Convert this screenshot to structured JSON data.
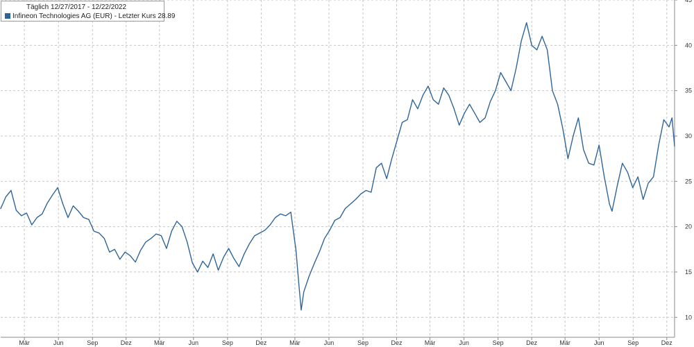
{
  "chart_data": {
    "type": "line",
    "title": "Täglich 12/27/2017 - 12/22/2022",
    "series": [
      {
        "name": "Infineon Technologies AG (EUR) - Letzter Kurs 28.89",
        "color": "#2e6599",
        "points": [
          [
            "2017-12-27",
            22.0
          ],
          [
            "2018-01-10",
            23.3
          ],
          [
            "2018-01-24",
            24.0
          ],
          [
            "2018-02-07",
            21.8
          ],
          [
            "2018-02-21",
            21.2
          ],
          [
            "2018-03-07",
            21.5
          ],
          [
            "2018-03-21",
            20.2
          ],
          [
            "2018-04-04",
            21.0
          ],
          [
            "2018-04-18",
            21.4
          ],
          [
            "2018-05-02",
            22.6
          ],
          [
            "2018-05-16",
            23.5
          ],
          [
            "2018-05-30",
            24.3
          ],
          [
            "2018-06-13",
            22.5
          ],
          [
            "2018-06-27",
            21.0
          ],
          [
            "2018-07-11",
            22.3
          ],
          [
            "2018-07-25",
            21.7
          ],
          [
            "2018-08-08",
            21.0
          ],
          [
            "2018-08-22",
            20.8
          ],
          [
            "2018-09-05",
            19.5
          ],
          [
            "2018-09-19",
            19.3
          ],
          [
            "2018-10-03",
            18.7
          ],
          [
            "2018-10-17",
            17.2
          ],
          [
            "2018-10-31",
            17.5
          ],
          [
            "2018-11-14",
            16.4
          ],
          [
            "2018-11-28",
            17.2
          ],
          [
            "2018-12-12",
            16.8
          ],
          [
            "2018-12-26",
            16.1
          ],
          [
            "2019-01-09",
            17.4
          ],
          [
            "2019-01-23",
            18.3
          ],
          [
            "2019-02-06",
            18.7
          ],
          [
            "2019-02-20",
            19.2
          ],
          [
            "2019-03-06",
            19.0
          ],
          [
            "2019-03-20",
            17.6
          ],
          [
            "2019-04-03",
            19.5
          ],
          [
            "2019-04-17",
            20.6
          ],
          [
            "2019-05-01",
            20.0
          ],
          [
            "2019-05-15",
            18.3
          ],
          [
            "2019-05-29",
            16.0
          ],
          [
            "2019-06-12",
            15.0
          ],
          [
            "2019-06-26",
            16.2
          ],
          [
            "2019-07-10",
            15.5
          ],
          [
            "2019-07-24",
            17.0
          ],
          [
            "2019-08-07",
            15.2
          ],
          [
            "2019-08-21",
            16.6
          ],
          [
            "2019-09-04",
            17.6
          ],
          [
            "2019-09-18",
            16.5
          ],
          [
            "2019-10-02",
            15.6
          ],
          [
            "2019-10-16",
            17.0
          ],
          [
            "2019-10-30",
            18.1
          ],
          [
            "2019-11-13",
            19.0
          ],
          [
            "2019-11-27",
            19.3
          ],
          [
            "2019-12-11",
            19.6
          ],
          [
            "2019-12-25",
            20.2
          ],
          [
            "2020-01-08",
            21.0
          ],
          [
            "2020-01-22",
            21.4
          ],
          [
            "2020-02-05",
            21.2
          ],
          [
            "2020-02-19",
            21.6
          ],
          [
            "2020-03-04",
            17.4
          ],
          [
            "2020-03-12",
            13.5
          ],
          [
            "2020-03-18",
            10.8
          ],
          [
            "2020-03-25",
            12.8
          ],
          [
            "2020-04-08",
            14.5
          ],
          [
            "2020-04-22",
            15.9
          ],
          [
            "2020-05-06",
            17.2
          ],
          [
            "2020-05-20",
            18.7
          ],
          [
            "2020-06-03",
            19.6
          ],
          [
            "2020-06-17",
            20.7
          ],
          [
            "2020-07-01",
            21.0
          ],
          [
            "2020-07-15",
            22.0
          ],
          [
            "2020-07-29",
            22.5
          ],
          [
            "2020-08-12",
            23.0
          ],
          [
            "2020-08-26",
            23.6
          ],
          [
            "2020-09-09",
            24.0
          ],
          [
            "2020-09-23",
            23.8
          ],
          [
            "2020-10-07",
            26.5
          ],
          [
            "2020-10-21",
            27.0
          ],
          [
            "2020-11-04",
            25.3
          ],
          [
            "2020-11-18",
            27.5
          ],
          [
            "2020-12-02",
            29.5
          ],
          [
            "2020-12-16",
            31.5
          ],
          [
            "2020-12-30",
            31.8
          ],
          [
            "2021-01-13",
            34.0
          ],
          [
            "2021-01-27",
            33.0
          ],
          [
            "2021-02-10",
            34.5
          ],
          [
            "2021-02-24",
            35.5
          ],
          [
            "2021-03-10",
            34.0
          ],
          [
            "2021-03-24",
            33.5
          ],
          [
            "2021-04-07",
            35.3
          ],
          [
            "2021-04-21",
            34.5
          ],
          [
            "2021-05-05",
            33.0
          ],
          [
            "2021-05-19",
            31.2
          ],
          [
            "2021-06-02",
            32.5
          ],
          [
            "2021-06-16",
            33.5
          ],
          [
            "2021-06-30",
            32.5
          ],
          [
            "2021-07-14",
            31.5
          ],
          [
            "2021-07-28",
            32.0
          ],
          [
            "2021-08-11",
            33.8
          ],
          [
            "2021-08-25",
            35.0
          ],
          [
            "2021-09-08",
            37.0
          ],
          [
            "2021-09-22",
            36.0
          ],
          [
            "2021-10-06",
            35.0
          ],
          [
            "2021-10-20",
            37.5
          ],
          [
            "2021-11-03",
            40.5
          ],
          [
            "2021-11-17",
            42.5
          ],
          [
            "2021-12-01",
            40.0
          ],
          [
            "2021-12-15",
            39.5
          ],
          [
            "2021-12-29",
            41.0
          ],
          [
            "2022-01-12",
            39.5
          ],
          [
            "2022-01-26",
            35.0
          ],
          [
            "2022-02-09",
            33.5
          ],
          [
            "2022-02-23",
            30.8
          ],
          [
            "2022-03-09",
            27.5
          ],
          [
            "2022-03-23",
            30.0
          ],
          [
            "2022-04-06",
            32.0
          ],
          [
            "2022-04-20",
            28.5
          ],
          [
            "2022-05-04",
            27.0
          ],
          [
            "2022-05-18",
            26.8
          ],
          [
            "2022-06-01",
            29.0
          ],
          [
            "2022-06-15",
            25.5
          ],
          [
            "2022-06-29",
            22.5
          ],
          [
            "2022-07-06",
            21.7
          ],
          [
            "2022-07-20",
            24.5
          ],
          [
            "2022-08-03",
            27.0
          ],
          [
            "2022-08-17",
            26.0
          ],
          [
            "2022-08-31",
            24.3
          ],
          [
            "2022-09-14",
            25.5
          ],
          [
            "2022-09-28",
            23.0
          ],
          [
            "2022-10-12",
            24.8
          ],
          [
            "2022-10-26",
            25.5
          ],
          [
            "2022-11-09",
            29.0
          ],
          [
            "2022-11-23",
            31.8
          ],
          [
            "2022-12-07",
            31.0
          ],
          [
            "2022-12-15",
            32.0
          ],
          [
            "2022-12-22",
            28.89
          ]
        ]
      }
    ],
    "x_tick_labels": [
      [
        "2018-03-01",
        "Mär"
      ],
      [
        "2018-06-01",
        "Jun"
      ],
      [
        "2018-09-01",
        "Sep"
      ],
      [
        "2018-12-01",
        "Dez"
      ],
      [
        "2019-03-01",
        "Mär"
      ],
      [
        "2019-06-01",
        "Jun"
      ],
      [
        "2019-09-01",
        "Sep"
      ],
      [
        "2019-12-01",
        "Dez"
      ],
      [
        "2020-03-01",
        "Mär"
      ],
      [
        "2020-06-01",
        "Jun"
      ],
      [
        "2020-09-01",
        "Sep"
      ],
      [
        "2020-12-01",
        "Dez"
      ],
      [
        "2021-03-01",
        "Mär"
      ],
      [
        "2021-06-01",
        "Jun"
      ],
      [
        "2021-09-01",
        "Sep"
      ],
      [
        "2021-12-01",
        "Dez"
      ],
      [
        "2022-03-01",
        "Mär"
      ],
      [
        "2022-06-01",
        "Jun"
      ],
      [
        "2022-09-01",
        "Sep"
      ],
      [
        "2022-12-01",
        "Dez"
      ]
    ],
    "xlim": [
      "2017-12-27",
      "2022-12-22"
    ],
    "y_ticks": [
      10,
      15,
      20,
      25,
      30,
      35,
      40,
      45
    ],
    "ylim": [
      7.8,
      45
    ],
    "y_axis_side": "right",
    "grid": true,
    "legend_position": "top-left",
    "xlabel": "",
    "ylabel": ""
  }
}
